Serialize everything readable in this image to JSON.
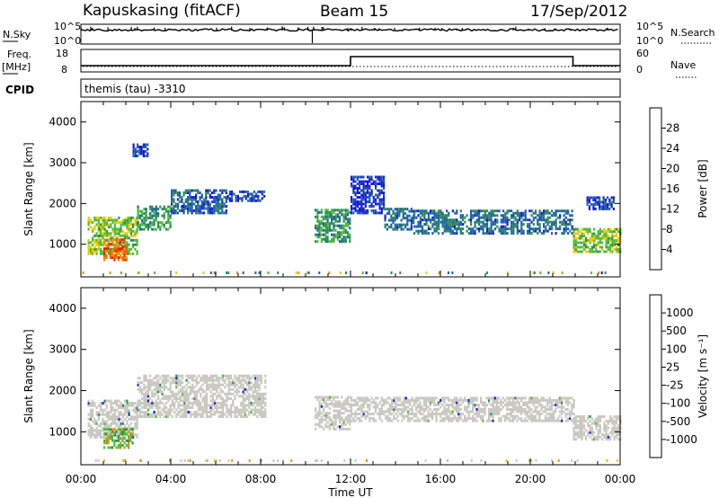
{
  "header": {
    "station": "Kapuskasing (fitACF)",
    "beam": "Beam 15",
    "date": "17/Sep/2012"
  },
  "side_labels": {
    "nsky": "N.Sky",
    "freq_line1": "Freq.",
    "freq_line2": "[MHz]",
    "cpid": "CPID",
    "nsearch": "N.Search",
    "nave": "Nave"
  },
  "strip_ticks": {
    "nsky_top": "10^5",
    "nsky_bottom": "10^0",
    "nsearch_top": "10^5",
    "nsearch_bottom": "10^0",
    "freq_top": "18",
    "freq_bottom": "8",
    "nave_top": "60",
    "nave_bottom": "0"
  },
  "cpid_text": "themis (tau) -3310",
  "colors": {
    "power": [
      "#1818e0",
      "#1f5fb0",
      "#2e8b57",
      "#4dbb3a",
      "#f0c800",
      "#f09000",
      "#e86000",
      "#d82010"
    ],
    "velocity": [
      "#1818e0",
      "#2e8b57",
      "#4dbb3a",
      "#c8c8c0",
      "#f0c800",
      "#f09000",
      "#e86000",
      "#ff0000"
    ],
    "ground_scatter": "#c8c8c0"
  },
  "chart_data": [
    {
      "type": "heatmap",
      "name": "power",
      "ylabel": "Slant Range [km]",
      "ylim": [
        200,
        4500
      ],
      "yticks": [
        "1000",
        "2000",
        "3000",
        "4000"
      ],
      "xlim": [
        "00:00",
        "24:00"
      ],
      "colorbar_label": "Power [dB]",
      "colorbar_ticks": [
        "4",
        "8",
        "12",
        "16",
        "20",
        "24",
        "28"
      ],
      "colorbar_range": [
        0,
        30
      ],
      "segments": [
        {
          "t0": 0.3,
          "t1": 2.5,
          "r0": 800,
          "r1": 1700,
          "v": 14
        },
        {
          "t0": 1.0,
          "t1": 2.0,
          "r0": 650,
          "r1": 1200,
          "v": 24
        },
        {
          "t0": 2.5,
          "t1": 4.0,
          "r0": 1400,
          "r1": 2000,
          "v": 10
        },
        {
          "t0": 4.0,
          "t1": 6.5,
          "r0": 1800,
          "r1": 2400,
          "v": 6
        },
        {
          "t0": 6.5,
          "t1": 8.2,
          "r0": 2100,
          "r1": 2350,
          "v": 4
        },
        {
          "t0": 2.3,
          "t1": 3.0,
          "r0": 3200,
          "r1": 3500,
          "v": 4
        },
        {
          "t0": 10.4,
          "t1": 12.0,
          "r0": 1100,
          "r1": 1900,
          "v": 10
        },
        {
          "t0": 12.0,
          "t1": 13.5,
          "r0": 1800,
          "r1": 2700,
          "v": 3
        },
        {
          "t0": 13.5,
          "t1": 14.8,
          "r0": 1400,
          "r1": 1900,
          "v": 7
        },
        {
          "t0": 14.8,
          "t1": 21.9,
          "r0": 1300,
          "r1": 1900,
          "v": 7
        },
        {
          "t0": 21.9,
          "t1": 24.0,
          "r0": 850,
          "r1": 1450,
          "v": 14
        },
        {
          "t0": 22.5,
          "t1": 23.7,
          "r0": 1900,
          "r1": 2200,
          "v": 4
        }
      ]
    },
    {
      "type": "heatmap",
      "name": "velocity",
      "ylabel": "Slant Range [km]",
      "ylim": [
        200,
        4500
      ],
      "yticks": [
        "1000",
        "2000",
        "3000",
        "4000"
      ],
      "xlim": [
        "00:00",
        "24:00"
      ],
      "xticks": [
        "00:00",
        "04:00",
        "08:00",
        "12:00",
        "16:00",
        "20:00",
        "00:00"
      ],
      "xlabel": "Time UT",
      "colorbar_label": "Velocity [m s⁻¹]",
      "colorbar_ticks": [
        "1000",
        "500",
        "100",
        "25",
        "-25",
        "-100",
        "-500",
        "-1000"
      ],
      "segments": [
        {
          "t0": 0.3,
          "t1": 2.5,
          "r0": 900,
          "r1": 1800,
          "v": "gs"
        },
        {
          "t0": 1.0,
          "t1": 2.3,
          "r0": 650,
          "r1": 1100,
          "v": "pos"
        },
        {
          "t0": 2.5,
          "t1": 8.2,
          "r0": 1400,
          "r1": 2400,
          "v": "gs"
        },
        {
          "t0": 10.4,
          "t1": 12.0,
          "r0": 1100,
          "r1": 1900,
          "v": "gs"
        },
        {
          "t0": 12.0,
          "t1": 21.9,
          "r0": 1300,
          "r1": 1900,
          "v": "gs"
        },
        {
          "t0": 21.9,
          "t1": 24.0,
          "r0": 850,
          "r1": 1450,
          "v": "gs"
        }
      ]
    }
  ]
}
